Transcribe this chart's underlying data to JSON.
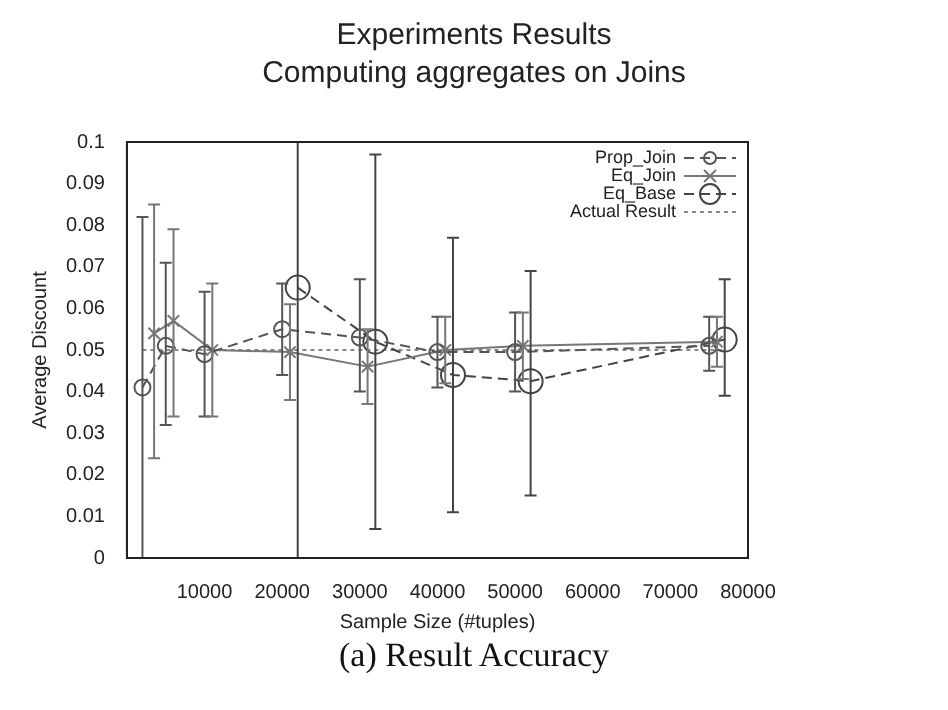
{
  "chart_data": {
    "type": "scatter",
    "title": "Experiments Results",
    "subtitle": "Computing aggregates on Joins",
    "xlabel": "Sample Size (#tuples)",
    "ylabel": "Average Discount",
    "annotations": [
      "(a) Result Accuracy"
    ],
    "xlim": [
      0,
      80000
    ],
    "xticks": [
      10000,
      20000,
      30000,
      40000,
      50000,
      60000,
      70000,
      80000
    ],
    "ylim": [
      0,
      0.1
    ],
    "yticks": [
      0,
      0.01,
      0.02,
      0.03,
      0.04,
      0.05,
      0.06,
      0.07,
      0.08,
      0.09,
      0.1
    ],
    "legend": "top right",
    "grid": false,
    "series": [
      {
        "name": "Prop_Join",
        "type": "line",
        "color": "#555555",
        "marker": "circle",
        "line_style": "dashed",
        "x": [
          2000,
          5000,
          10000,
          20000,
          30000,
          40000,
          50000,
          75000
        ],
        "values": [
          0.041,
          0.051,
          0.049,
          0.055,
          0.053,
          0.0495,
          0.0495,
          0.051
        ],
        "errors": [
          [
            0,
            0.082
          ],
          [
            0.032,
            0.071
          ],
          [
            0.034,
            0.064
          ],
          [
            0.044,
            0.066
          ],
          [
            0.04,
            0.067
          ],
          [
            0.041,
            0.058
          ],
          [
            0.04,
            0.059
          ],
          [
            0.045,
            0.058
          ]
        ]
      },
      {
        "name": "Eq_Join",
        "type": "line",
        "color": "#777777",
        "marker": "cross",
        "line_style": "solid",
        "x": [
          3500,
          6000,
          11000,
          21000,
          31000,
          41000,
          51000,
          76000
        ],
        "values": [
          0.054,
          0.057,
          0.05,
          0.0495,
          0.046,
          0.05,
          0.051,
          0.052
        ],
        "errors": [
          [
            0.024,
            0.085
          ],
          [
            0.034,
            0.079
          ],
          [
            0.034,
            0.066
          ],
          [
            0.038,
            0.061
          ],
          [
            0.037,
            0.055
          ],
          [
            0.042,
            0.058
          ],
          [
            0.043,
            0.059
          ],
          [
            0.046,
            0.058
          ]
        ]
      },
      {
        "name": "Eq_Base",
        "type": "line",
        "color": "#444444",
        "marker": "circle",
        "line_style": "dashed",
        "x": [
          22000,
          32000,
          42000,
          52000,
          77000
        ],
        "values": [
          0.065,
          0.052,
          0.044,
          0.0425,
          0.0525
        ],
        "errors": [
          [
            0,
            0.1
          ],
          [
            0.007,
            0.097
          ],
          [
            0.011,
            0.077
          ],
          [
            0.015,
            0.069
          ],
          [
            0.039,
            0.067
          ]
        ]
      },
      {
        "name": "Actual Result",
        "type": "line",
        "color": "#888888",
        "marker": "none",
        "line_style": "dotted",
        "x": [
          2000,
          77000
        ],
        "values": [
          0.05,
          0.05
        ]
      }
    ]
  }
}
